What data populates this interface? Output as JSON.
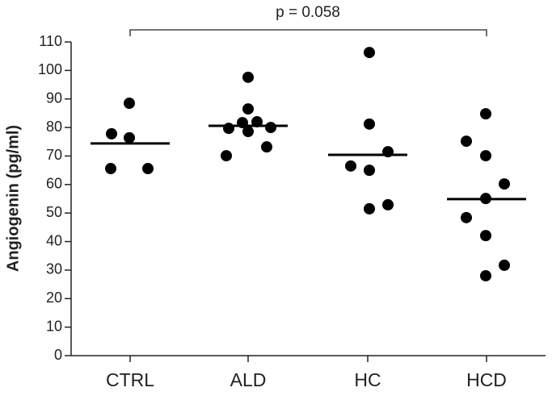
{
  "chart_data": {
    "type": "dot",
    "y_label": "Angiogenin (pg/ml)",
    "annotation": "p = 0.058",
    "categories": [
      "CTRL",
      "ALD",
      "HC",
      "HCD"
    ],
    "points": [
      [
        88.5,
        77.8,
        76.4,
        65.6,
        65.6
      ],
      [
        97.6,
        86.5,
        79.7,
        81.7,
        82,
        80,
        78.6,
        73.2,
        70.1
      ],
      [
        106.3,
        81.2,
        71.5,
        66.5,
        65,
        51.5,
        52.9
      ],
      [
        84.8,
        75.2,
        70.1,
        60.2,
        55.1,
        48.4,
        42.1,
        31.7,
        28
      ]
    ],
    "means": [
      74.4,
      80.6,
      70.4,
      54.9
    ],
    "color": "#000000",
    "ylim": [
      0,
      110
    ],
    "yticks": [
      0,
      10,
      20,
      30,
      40,
      50,
      60,
      70,
      80,
      90,
      100,
      110
    ]
  }
}
